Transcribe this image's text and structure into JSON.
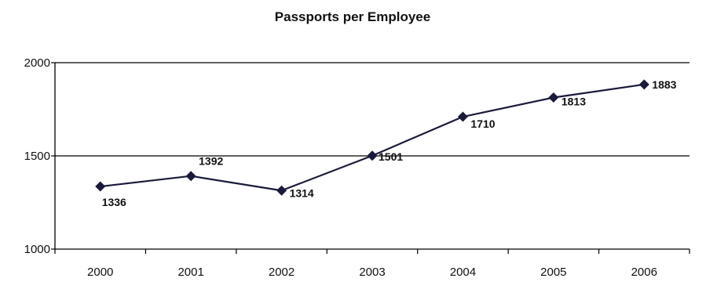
{
  "chart_data": {
    "type": "line",
    "title": "Passports per Employee",
    "xlabel": "",
    "ylabel": "",
    "categories": [
      "2000",
      "2001",
      "2002",
      "2003",
      "2004",
      "2005",
      "2006"
    ],
    "series": [
      {
        "values": [
          1336,
          1392,
          1314,
          1501,
          1710,
          1813,
          1883
        ]
      }
    ],
    "data_labels": [
      "1336",
      "1392",
      "1314",
      "1501",
      "1710",
      "1813",
      "1883"
    ],
    "ylim": [
      1000,
      2000
    ],
    "yticks": [
      1000,
      1500,
      2000
    ],
    "ytick_labels": [
      "1000",
      "1500",
      "2000"
    ],
    "grid": true,
    "legend": "none",
    "line_color": "#1a1a3a",
    "marker_color": "#1a1a3a",
    "marker": "diamond"
  }
}
